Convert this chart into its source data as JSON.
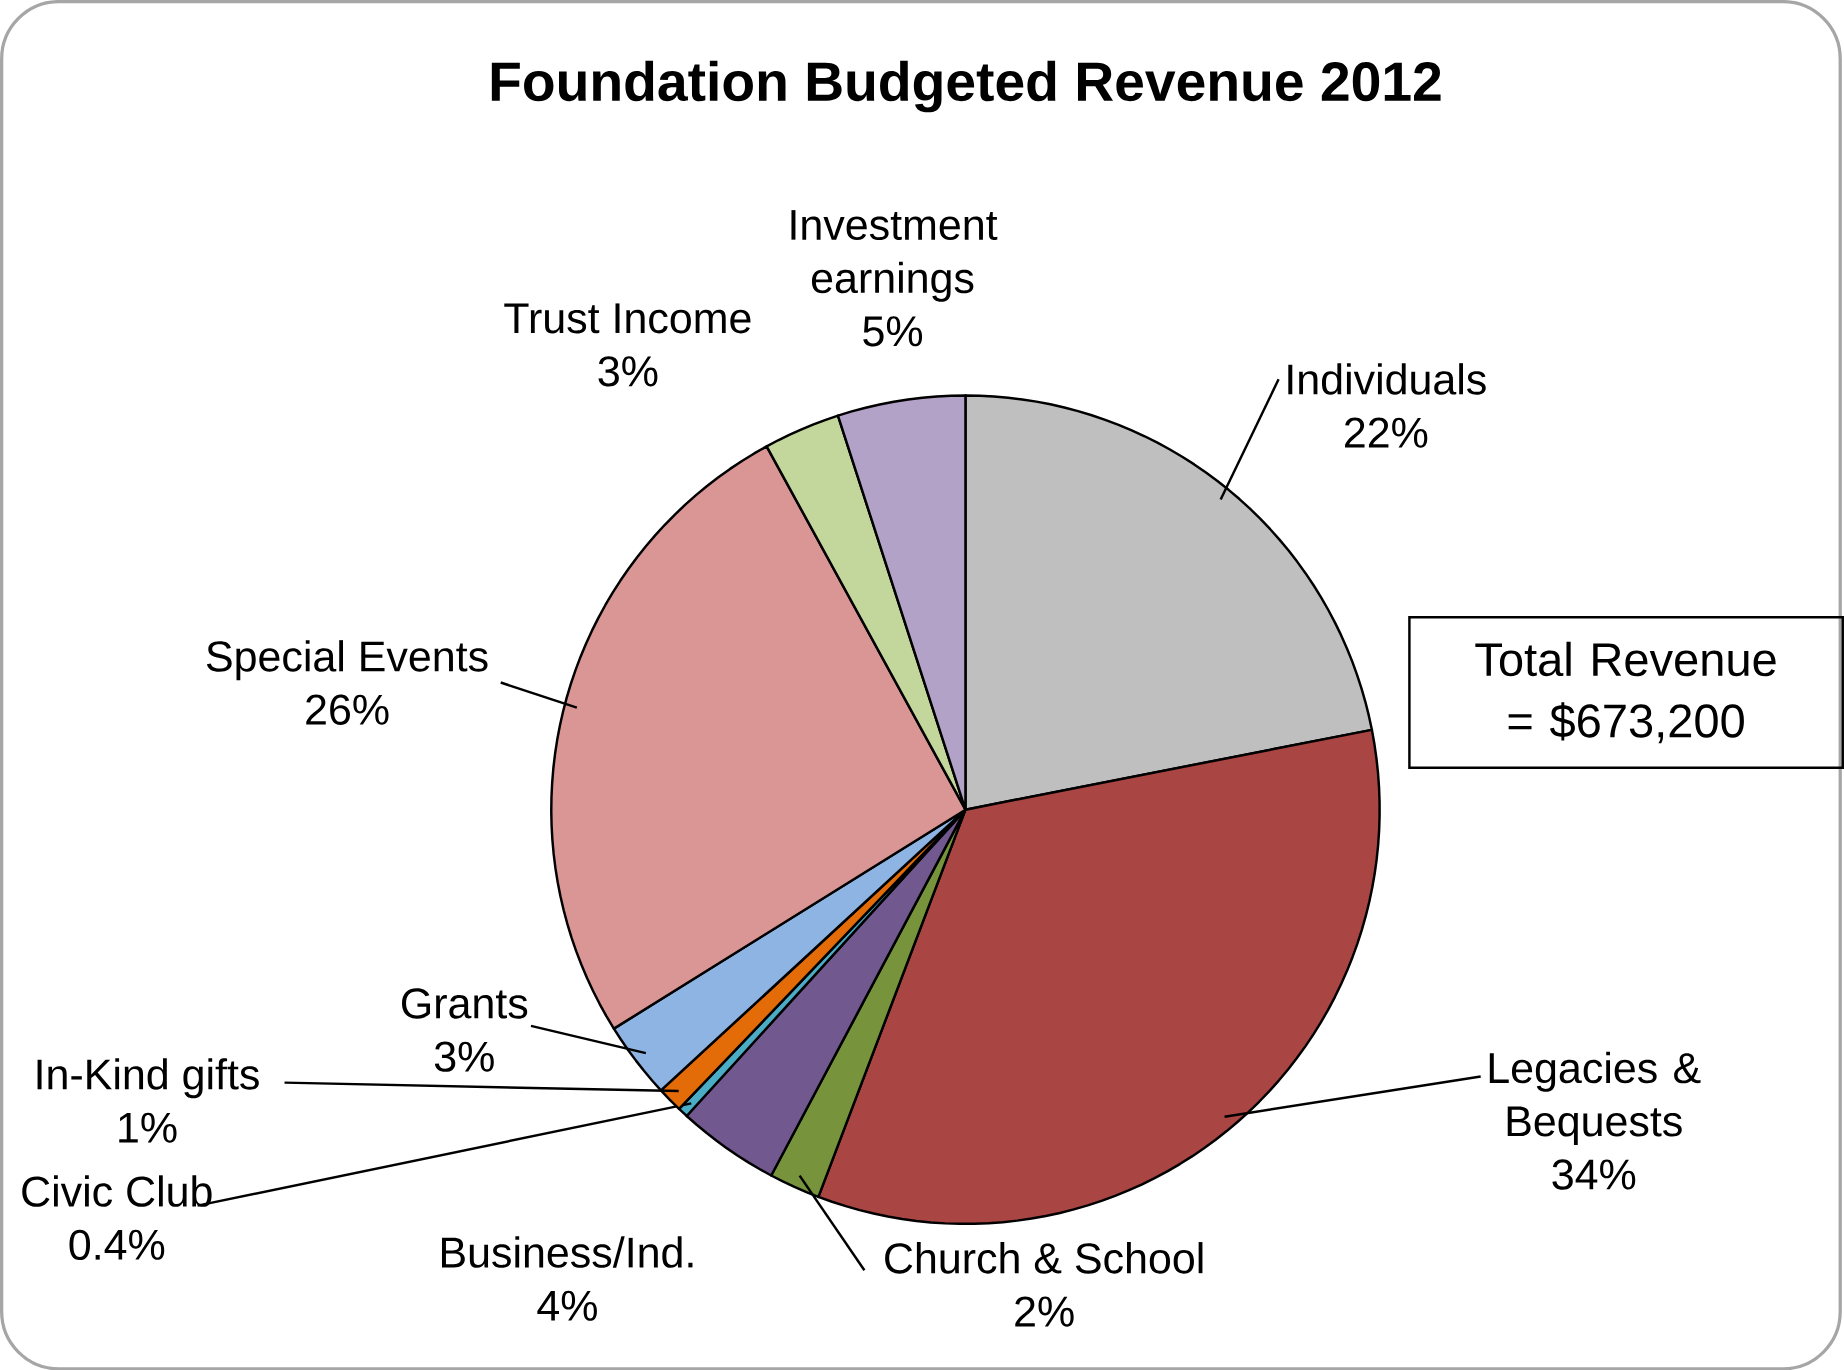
{
  "chart_data": {
    "type": "pie",
    "title": "Foundation Budgeted Revenue 2012",
    "categories": [
      "Individuals",
      "Legacies & Bequests",
      "Church & School",
      "Business/Ind.",
      "Civic Club",
      "In-Kind gifts",
      "Grants",
      "Special Events",
      "Trust Income",
      "Investment earnings"
    ],
    "values": [
      22,
      34,
      2,
      4,
      0.4,
      1,
      3,
      26,
      3,
      5
    ],
    "value_labels": [
      "22%",
      "34%",
      "2%",
      "4%",
      "0.4%",
      "1%",
      "3%",
      "26%",
      "3%",
      "5%"
    ],
    "colors": [
      "#bfbfbf",
      "#a94643",
      "#77933c",
      "#71588f",
      "#4bacc6",
      "#e36c09",
      "#8eb4e3",
      "#d99694",
      "#c3d69b",
      "#b3a2c7"
    ],
    "annotations": [
      "Total Revenue = $673,200"
    ]
  }
}
